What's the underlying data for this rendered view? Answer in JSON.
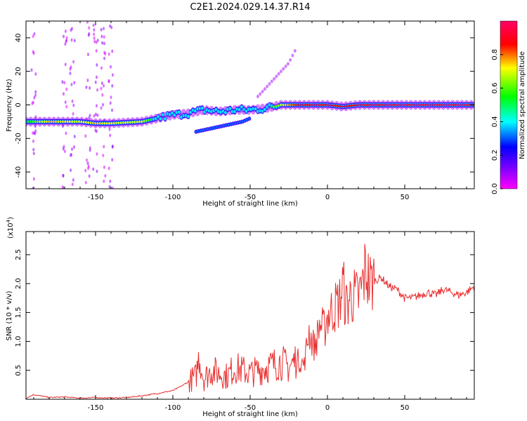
{
  "title": "C2E1.2024.029.14.37.R14",
  "chart_data": [
    {
      "type": "heatmap",
      "title": "C2E1.2024.029.14.37.R14",
      "xlabel": "Height of straight line (km)",
      "ylabel": "Frequency (Hz)",
      "xlim": [
        -195,
        95
      ],
      "ylim": [
        -50,
        50
      ],
      "x_ticks": [
        -150,
        -100,
        -50,
        0,
        50
      ],
      "x_tick_labels": [
        "-150",
        "-100",
        "-50",
        "0",
        "50"
      ],
      "y_ticks": [
        -40,
        -20,
        0,
        20,
        40
      ],
      "y_tick_labels": [
        "-40",
        "-20",
        "0",
        "20",
        "40"
      ],
      "colorbar": {
        "label": "Normalized spectral amplitude",
        "range": [
          0,
          1
        ],
        "ticks": [
          0.0,
          0.2,
          0.4,
          0.6,
          0.8
        ],
        "tick_labels": [
          "0.0",
          "0.2",
          "0.4",
          "0.6",
          "0.8"
        ],
        "colors": [
          "#ff00ff",
          "#8000ff",
          "#0000ff",
          "#00ffff",
          "#00ff00",
          "#ffff00",
          "#ff0000",
          "#ff0066"
        ]
      },
      "ridge": {
        "x": [
          -195,
          -180,
          -160,
          -150,
          -140,
          -120,
          -110,
          -100,
          -90,
          -80,
          -70,
          -60,
          -50,
          -40,
          -30,
          -20,
          -10,
          0,
          10,
          20,
          50,
          95
        ],
        "y": [
          -10,
          -10,
          -10,
          -11,
          -11,
          -10,
          -8,
          -6,
          -5,
          -3,
          -4,
          -3,
          -3,
          -2,
          0,
          0,
          0,
          0,
          -1,
          0,
          0,
          0
        ],
        "amplitude": [
          0.55,
          0.75,
          0.7,
          0.75,
          0.7,
          0.7,
          0.5,
          0.4,
          0.4,
          0.45,
          0.45,
          0.4,
          0.4,
          0.5,
          0.7,
          0.85,
          0.9,
          0.9,
          0.85,
          0.9,
          0.95,
          0.95
        ]
      },
      "secondary_branch": {
        "x": [
          -85,
          -75,
          -65,
          -55,
          -50
        ],
        "y": [
          -16,
          -14,
          -12,
          -10,
          -8
        ],
        "amplitude": 0.35
      },
      "upper_branch": {
        "x": [
          -45,
          -35,
          -25,
          -20
        ],
        "y": [
          5,
          15,
          25,
          34
        ],
        "amplitude": 0.1
      },
      "noise_columns": [
        -190,
        -170,
        -165,
        -155,
        -150,
        -145,
        -140
      ]
    },
    {
      "type": "line",
      "xlabel": "Height of straight line (km)",
      "ylabel": "SNR (10 * v/v)",
      "multiplier_label": "(x10",
      "multiplier_exp": "4",
      "multiplier_close": ")",
      "xlim": [
        -195,
        95
      ],
      "ylim": [
        0,
        2.9
      ],
      "x_ticks": [
        -150,
        -100,
        -50,
        0,
        50
      ],
      "x_tick_labels": [
        "-150",
        "-100",
        "-50",
        "0",
        "50"
      ],
      "y_ticks": [
        0.5,
        1.0,
        1.5,
        2.0,
        2.5
      ],
      "y_tick_labels": [
        "0.5",
        "1.0",
        "1.5",
        "2.0",
        "2.5"
      ],
      "color": "#e83030",
      "series": [
        {
          "x": [
            -195,
            -190,
            -180,
            -170,
            -160,
            -150,
            -140,
            -130,
            -120,
            -110,
            -100,
            -95,
            -90,
            -85,
            -83,
            -80,
            -75,
            -70,
            -65,
            -60,
            -55,
            -50,
            -45,
            -40,
            -35,
            -30,
            -25,
            -20,
            -15,
            -12,
            -10,
            -8,
            -5,
            -2,
            0,
            5,
            8,
            10,
            12,
            15,
            20,
            22,
            25,
            26,
            28,
            30,
            35,
            40,
            45,
            50,
            55,
            60,
            65,
            70,
            75,
            80,
            85,
            90,
            95
          ],
          "y": [
            0.02,
            0.08,
            0.03,
            0.04,
            0.02,
            0.03,
            0.02,
            0.03,
            0.06,
            0.1,
            0.15,
            0.22,
            0.3,
            0.4,
            0.75,
            0.35,
            0.5,
            0.45,
            0.4,
            0.55,
            0.5,
            0.45,
            0.5,
            0.55,
            0.6,
            0.65,
            0.55,
            0.7,
            0.6,
            1.2,
            1.0,
            0.9,
            1.3,
            1.2,
            1.45,
            1.6,
            1.7,
            2.0,
            1.6,
            1.8,
            1.75,
            1.9,
            2.3,
            2.1,
            2.0,
            2.05,
            2.1,
            1.95,
            1.9,
            1.75,
            1.75,
            1.8,
            1.85,
            1.8,
            1.9,
            1.85,
            1.8,
            1.85,
            1.95
          ]
        }
      ]
    }
  ]
}
